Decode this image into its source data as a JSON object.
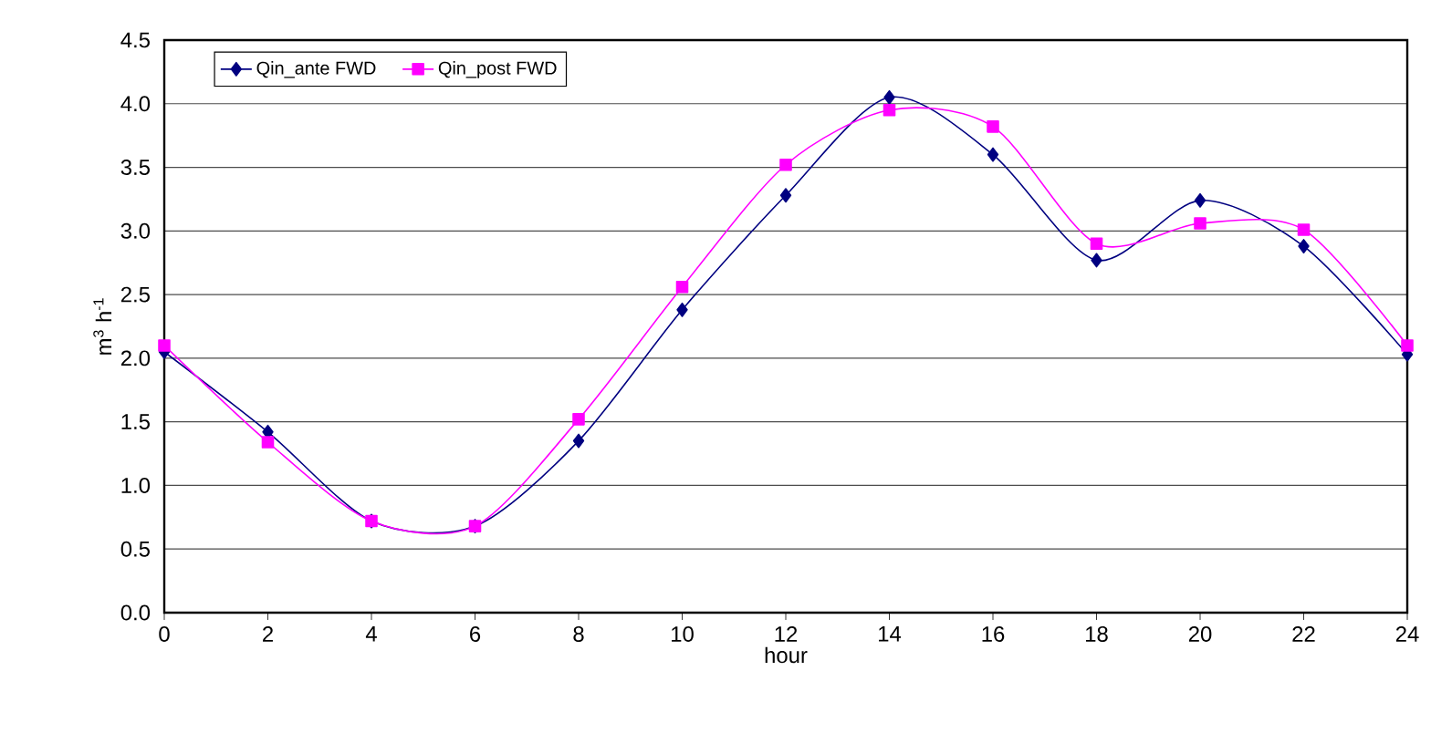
{
  "chart_data": {
    "type": "line",
    "xlabel": "hour",
    "ylabel": "m$^{3}$ h$^{-1}$",
    "x": [
      0,
      2,
      4,
      6,
      8,
      10,
      12,
      14,
      16,
      18,
      20,
      22,
      24
    ],
    "series": [
      {
        "name": "Qin_ante FWD",
        "color": "#000080",
        "marker": "diamond",
        "values": [
          2.05,
          1.42,
          0.72,
          0.68,
          1.35,
          2.38,
          3.28,
          4.05,
          3.6,
          2.77,
          3.24,
          2.88,
          2.03
        ]
      },
      {
        "name": "Qin_post FWD",
        "color": "#ff00ff",
        "marker": "square",
        "values": [
          2.1,
          1.34,
          0.72,
          0.68,
          1.52,
          2.56,
          3.52,
          3.95,
          3.82,
          2.9,
          3.06,
          3.01,
          2.1
        ]
      }
    ],
    "xlim": [
      0,
      24
    ],
    "ylim": [
      0,
      4.5
    ],
    "xticks": [
      0,
      2,
      4,
      6,
      8,
      10,
      12,
      14,
      16,
      18,
      20,
      22,
      24
    ],
    "yticks": [
      {
        "value": 0,
        "label": "0.0"
      },
      {
        "value": 0.5,
        "label": "0.5"
      },
      {
        "value": 1,
        "label": "1.0"
      },
      {
        "value": 1.5,
        "label": "1.5"
      },
      {
        "value": 2,
        "label": "2.0"
      },
      {
        "value": 2.5,
        "label": "2.5"
      },
      {
        "value": 3,
        "label": "3.0"
      },
      {
        "value": 3.5,
        "label": "3.5"
      },
      {
        "value": 4,
        "label": "4.0"
      },
      {
        "value": 4.5,
        "label": "4.5"
      }
    ],
    "grid": "y",
    "legend": "top left",
    "line_style": "solid"
  }
}
